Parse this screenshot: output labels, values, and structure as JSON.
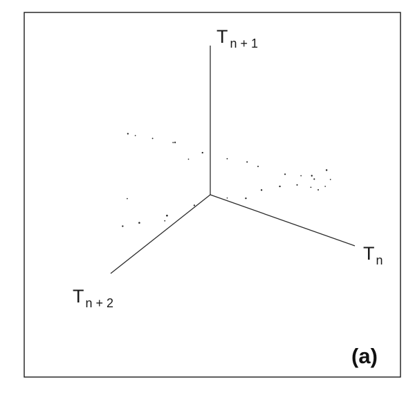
{
  "chart_data": {
    "type": "scatter",
    "projection": "3d",
    "panel_label": "(a)",
    "axes": [
      {
        "id": "x",
        "label_main": "T",
        "label_sub": "n"
      },
      {
        "id": "y",
        "label_main": "T",
        "label_sub": "n + 1"
      },
      {
        "id": "z",
        "label_main": "T",
        "label_sub": "n + 2"
      }
    ],
    "grid": false,
    "legend": "none",
    "point_color": "#222222",
    "series": [
      {
        "values": [
          [
            0.05,
            0.9,
            0.9
          ],
          [
            0.12,
            0.92,
            0.92
          ],
          [
            0.22,
            0.93,
            0.9
          ],
          [
            0.35,
            0.92,
            0.86
          ],
          [
            0.5,
            0.88,
            0.8
          ],
          [
            0.62,
            0.83,
            0.72
          ],
          [
            0.75,
            0.76,
            0.6
          ],
          [
            0.86,
            0.7,
            0.5
          ],
          [
            0.92,
            0.66,
            0.42
          ],
          [
            0.96,
            0.62,
            0.35
          ],
          [
            1.0,
            0.66,
            0.28
          ],
          [
            0.98,
            0.56,
            0.22
          ],
          [
            0.92,
            0.46,
            0.18
          ],
          [
            0.8,
            0.4,
            0.15
          ],
          [
            0.68,
            0.36,
            0.12
          ],
          [
            0.55,
            0.3,
            0.1
          ],
          [
            0.4,
            0.2,
            0.07
          ],
          [
            0.28,
            0.1,
            0.05
          ],
          [
            0.15,
            0.05,
            0.05
          ],
          [
            0.1,
            0.12,
            0.3
          ],
          [
            0.08,
            0.18,
            0.55
          ],
          [
            0.06,
            0.25,
            0.8
          ],
          [
            0.05,
            0.3,
            0.95
          ],
          [
            0.08,
            0.5,
            0.95
          ],
          [
            0.3,
            0.88,
            0.8
          ],
          [
            0.7,
            0.8,
            0.65
          ],
          [
            0.85,
            0.4,
            0.15
          ],
          [
            0.12,
            0.2,
            0.62
          ],
          [
            0.45,
            0.86,
            0.88
          ],
          [
            0.9,
            0.6,
            0.3
          ]
        ]
      }
    ]
  }
}
